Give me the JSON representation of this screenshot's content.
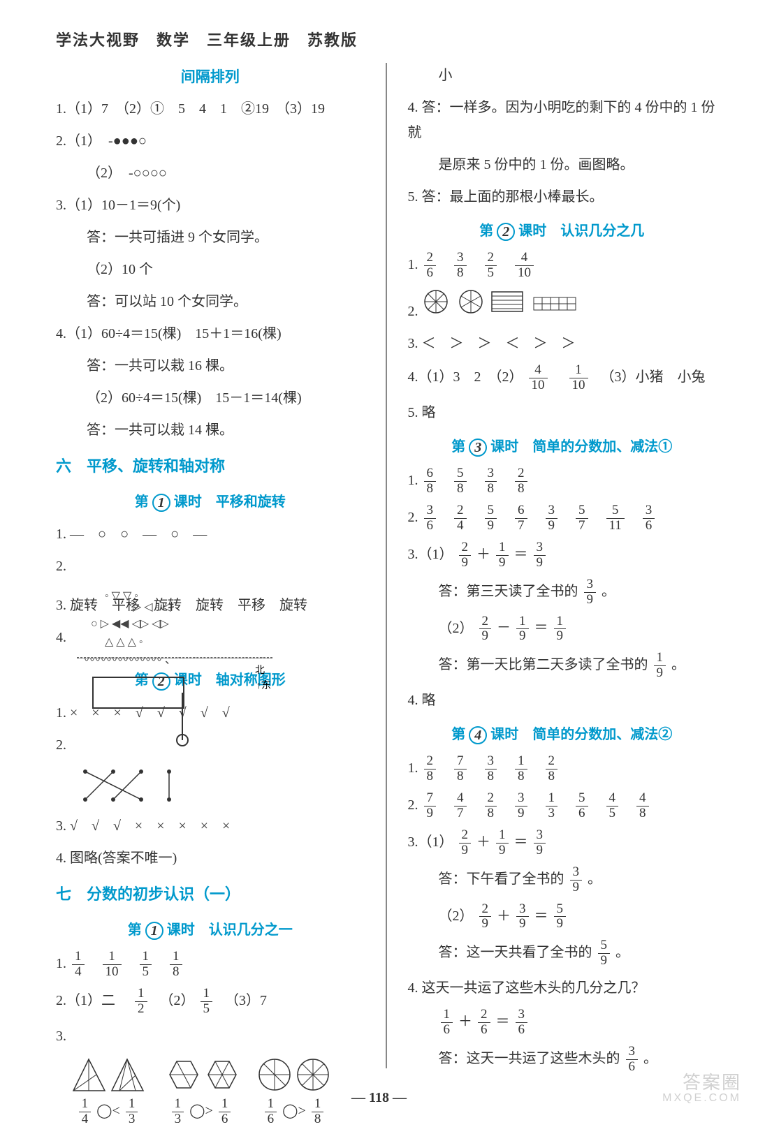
{
  "header": "学法大视野　数学　三年级上册　苏教版",
  "colors": {
    "blue": "#0099cc",
    "text": "#333333",
    "bg": "#ffffff"
  },
  "page_number": "— 118 —",
  "watermark": {
    "main": "答案圈",
    "sub": "MXQE.COM"
  },
  "left": {
    "section_title_1": "间隔排列",
    "q1": "1.（1）7　（2）①　5　4　1　②19　（3）19",
    "q2a": "2.（1）　-●●●○",
    "q2b": "（2）　-○○○○",
    "q3a": "3.（1）10－1＝9(个)",
    "q3a_ans": "答：一共可插进 9 个女同学。",
    "q3b": "（2）10 个",
    "q3b_ans": "答：可以站 10 个女同学。",
    "q4a": "4.（1）60÷4＝15(棵)　15＋1＝16(棵)",
    "q4a_ans": "答：一共可以栽 16 棵。",
    "q4b": "（2）60÷4＝15(棵)　15－1＝14(棵)",
    "q4b_ans": "答：一共可以栽 14 棵。",
    "unit6": "六　平移、旋转和轴对称",
    "lesson1_pre": "第",
    "lesson1_num": "1",
    "lesson1_post": "课时　平移和旋转",
    "l1q1": "1. —　○　○　—　○　—",
    "l1q2": "2.",
    "l1q3": "3. 旋转　平移　旋转　旋转　平移　旋转",
    "l1q4": "4.",
    "lesson2_pre": "第",
    "lesson2_num": "2",
    "lesson2_post": "课时　轴对称图形",
    "l2q1": "1. ×　×　×　√　√　√　√　√",
    "l2q2": "2.",
    "l2q3": "3. √　√　√　×　×　×　×　×",
    "l2q4": "4. 图略(答案不唯一)",
    "unit7": "七　分数的初步认识（一）",
    "lesson3_pre": "第",
    "lesson3_num": "1",
    "lesson3_post": "课时　认识几分之一",
    "l3q1_prefix": "1. ",
    "l3q1_fracs": [
      {
        "n": "1",
        "d": "4"
      },
      {
        "n": "1",
        "d": "10"
      },
      {
        "n": "1",
        "d": "5"
      },
      {
        "n": "1",
        "d": "8"
      }
    ],
    "l3q2_a": "2.（1）二　",
    "l3q2_f1": {
      "n": "1",
      "d": "2"
    },
    "l3q2_b": "　（2）",
    "l3q2_f2": {
      "n": "1",
      "d": "5"
    },
    "l3q2_c": "　（3）7",
    "l3q3": "3.",
    "l3q3_pairs": [
      {
        "f1": {
          "n": "1",
          "d": "4"
        },
        "op": "◯<",
        "f2": {
          "n": "1",
          "d": "3"
        }
      },
      {
        "f1": {
          "n": "1",
          "d": "3"
        },
        "op": "◯>",
        "f2": {
          "n": "1",
          "d": "6"
        }
      },
      {
        "f1": {
          "n": "1",
          "d": "6"
        },
        "op": "◯>",
        "f2": {
          "n": "1",
          "d": "8"
        }
      }
    ]
  },
  "right": {
    "cont": "小",
    "q4": "4. 答：一样多。因为小明吃的剩下的 4 份中的 1 份就",
    "q4b": "是原来 5 份中的 1 份。画图略。",
    "q5": "5. 答：最上面的那根小棒最长。",
    "lesson2_pre": "第",
    "lesson2_num": "2",
    "lesson2_post": "课时　认识几分之几",
    "r2q1_prefix": "1. ",
    "r2q1_fracs": [
      {
        "n": "2",
        "d": "6"
      },
      {
        "n": "3",
        "d": "8"
      },
      {
        "n": "2",
        "d": "5"
      },
      {
        "n": "4",
        "d": "10"
      }
    ],
    "r2q2": "2. ",
    "r2q3": "3. ＜　＞　＞　＜　＞　＞",
    "r2q4_a": "4.（1）3　2　（2）",
    "r2q4_f1": {
      "n": "4",
      "d": "10"
    },
    "r2q4_f2": {
      "n": "1",
      "d": "10"
    },
    "r2q4_b": "　（3）小猪　小兔",
    "r2q5": "5. 略",
    "lesson3_pre": "第",
    "lesson3_num": "3",
    "lesson3_post": "课时　简单的分数加、减法①",
    "r3q1_prefix": "1. ",
    "r3q1_fracs": [
      {
        "n": "6",
        "d": "8"
      },
      {
        "n": "5",
        "d": "8"
      },
      {
        "n": "3",
        "d": "8"
      },
      {
        "n": "2",
        "d": "8"
      }
    ],
    "r3q2_prefix": "2. ",
    "r3q2_fracs": [
      {
        "n": "3",
        "d": "6"
      },
      {
        "n": "2",
        "d": "4"
      },
      {
        "n": "5",
        "d": "9"
      },
      {
        "n": "6",
        "d": "7"
      },
      {
        "n": "3",
        "d": "9"
      },
      {
        "n": "5",
        "d": "7"
      },
      {
        "n": "5",
        "d": "11"
      },
      {
        "n": "3",
        "d": "6"
      }
    ],
    "r3q3a_pre": "3.（1）",
    "r3q3a_eq": [
      {
        "n": "2",
        "d": "9"
      },
      "＋",
      {
        "n": "1",
        "d": "9"
      },
      "＝",
      {
        "n": "3",
        "d": "9"
      }
    ],
    "r3q3a_ans_pre": "答：第三天读了全书的",
    "r3q3a_ans_frac": {
      "n": "3",
      "d": "9"
    },
    "r3q3a_ans_suf": "。",
    "r3q3b_pre": "（2）",
    "r3q3b_eq": [
      {
        "n": "2",
        "d": "9"
      },
      "－",
      {
        "n": "1",
        "d": "9"
      },
      "＝",
      {
        "n": "1",
        "d": "9"
      }
    ],
    "r3q3b_ans_pre": "答：第一天比第二天多读了全书的",
    "r3q3b_ans_frac": {
      "n": "1",
      "d": "9"
    },
    "r3q3b_ans_suf": "。",
    "r3q4": "4. 略",
    "lesson4_pre": "第",
    "lesson4_num": "4",
    "lesson4_post": "课时　简单的分数加、减法②",
    "r4q1_prefix": "1. ",
    "r4q1_fracs": [
      {
        "n": "2",
        "d": "8"
      },
      {
        "n": "7",
        "d": "8"
      },
      {
        "n": "3",
        "d": "8"
      },
      {
        "n": "1",
        "d": "8"
      },
      {
        "n": "2",
        "d": "8"
      }
    ],
    "r4q2_prefix": "2. ",
    "r4q2_fracs": [
      {
        "n": "7",
        "d": "9"
      },
      {
        "n": "4",
        "d": "7"
      },
      {
        "n": "2",
        "d": "8"
      },
      {
        "n": "3",
        "d": "9"
      },
      {
        "n": "1",
        "d": "3"
      },
      {
        "n": "5",
        "d": "6"
      },
      {
        "n": "4",
        "d": "5"
      },
      {
        "n": "4",
        "d": "8"
      }
    ],
    "r4q3a_pre": "3.（1）",
    "r4q3a_eq": [
      {
        "n": "2",
        "d": "9"
      },
      "＋",
      {
        "n": "1",
        "d": "9"
      },
      "＝",
      {
        "n": "3",
        "d": "9"
      }
    ],
    "r4q3a_ans_pre": "答：下午看了全书的",
    "r4q3a_ans_frac": {
      "n": "3",
      "d": "9"
    },
    "r4q3a_ans_suf": "。",
    "r4q3b_pre": "（2）",
    "r4q3b_eq": [
      {
        "n": "2",
        "d": "9"
      },
      "＋",
      {
        "n": "3",
        "d": "9"
      },
      "＝",
      {
        "n": "5",
        "d": "9"
      }
    ],
    "r4q3b_ans_pre": "答：这一天共看了全书的",
    "r4q3b_ans_frac": {
      "n": "5",
      "d": "9"
    },
    "r4q3b_ans_suf": "。",
    "r4q4": "4. 这天一共运了这些木头的几分之几？",
    "r4q4_eq": [
      {
        "n": "1",
        "d": "6"
      },
      "＋",
      {
        "n": "2",
        "d": "6"
      },
      "＝",
      {
        "n": "3",
        "d": "6"
      }
    ],
    "r4q4_ans_pre": "答：这天一共运了这些木头的",
    "r4q4_ans_frac": {
      "n": "3",
      "d": "6"
    },
    "r4q4_ans_suf": "。"
  }
}
